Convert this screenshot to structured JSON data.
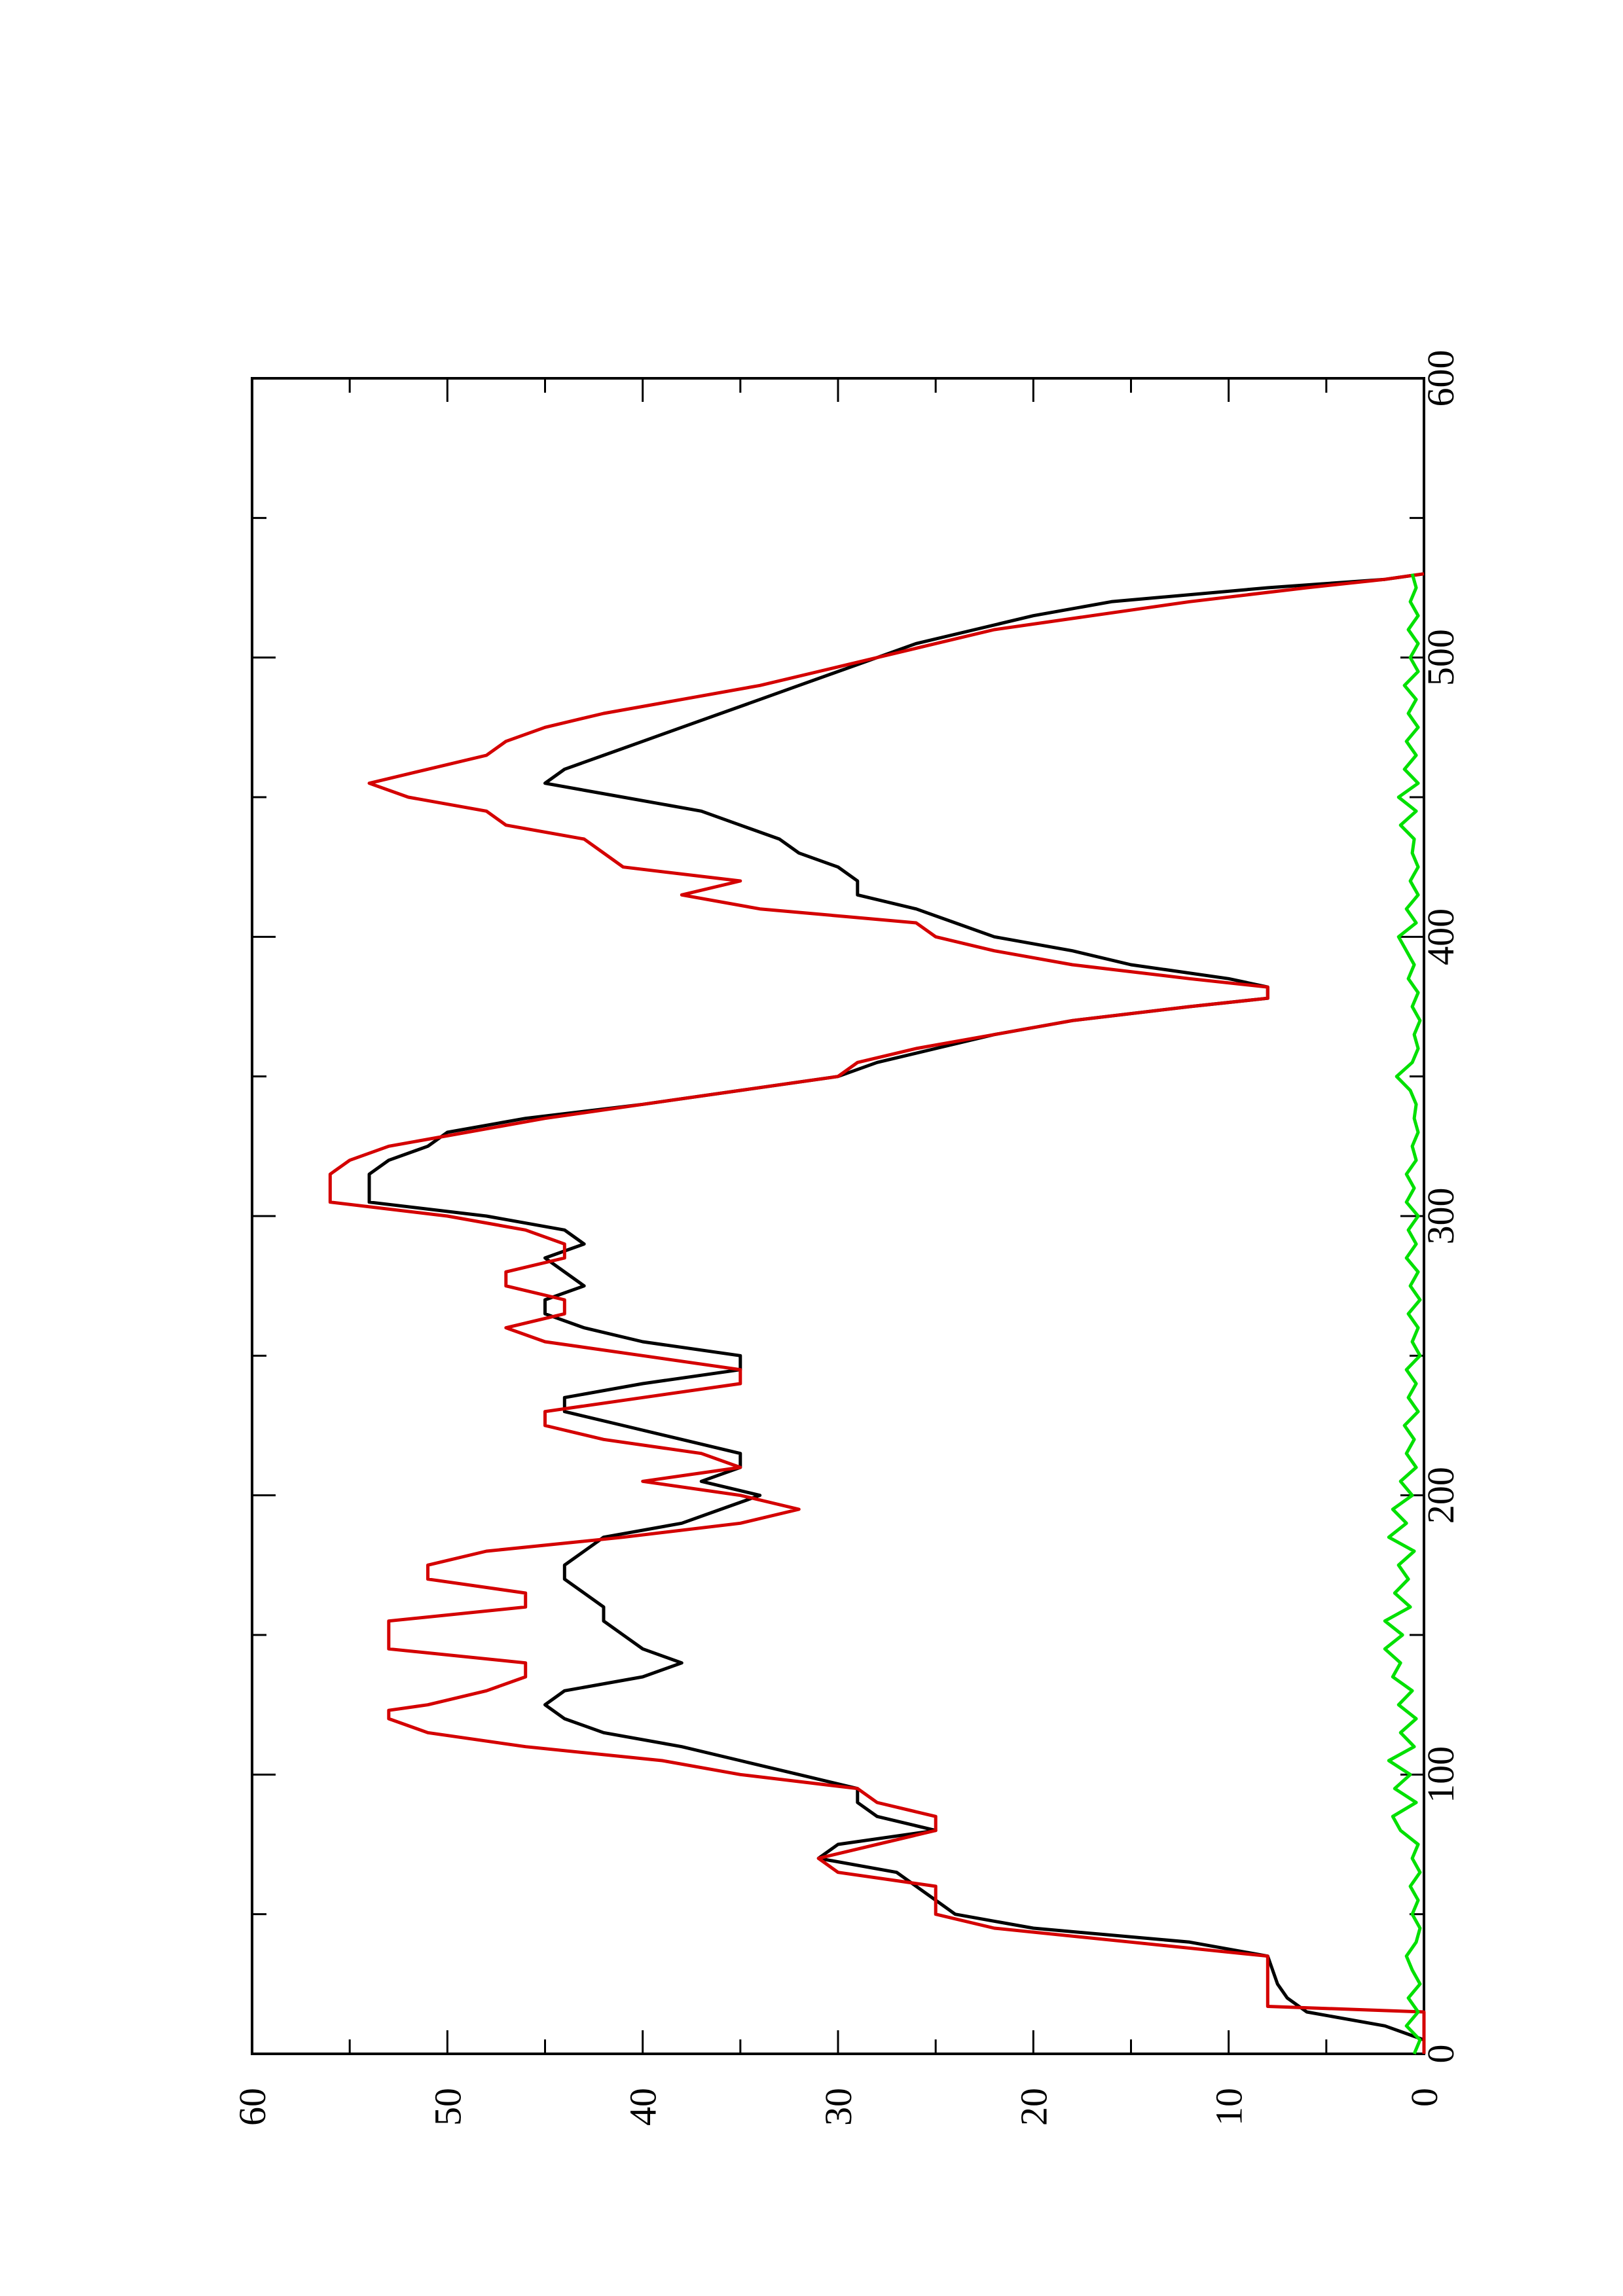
{
  "chart_data": {
    "type": "line",
    "orientation": "rotated-90-ccw",
    "title": "",
    "xlabel": "",
    "ylabel": "",
    "xlim": [
      0,
      600
    ],
    "ylim": [
      0,
      60
    ],
    "x_ticks": [
      "0",
      "100",
      "200",
      "300",
      "400",
      "500",
      "600"
    ],
    "y_ticks": [
      "0",
      "10",
      "20",
      "30",
      "40",
      "50",
      "60"
    ],
    "grid": false,
    "legend": "none",
    "series": [
      {
        "color": "#000000",
        "points": [
          [
            0,
            0
          ],
          [
            5,
            0
          ],
          [
            10,
            2
          ],
          [
            15,
            6
          ],
          [
            20,
            7
          ],
          [
            25,
            7.5
          ],
          [
            35,
            8
          ],
          [
            40,
            12
          ],
          [
            45,
            20
          ],
          [
            50,
            24
          ],
          [
            55,
            25
          ],
          [
            60,
            26
          ],
          [
            65,
            27
          ],
          [
            70,
            31
          ],
          [
            75,
            30
          ],
          [
            80,
            25
          ],
          [
            85,
            28
          ],
          [
            90,
            29
          ],
          [
            95,
            29
          ],
          [
            100,
            32
          ],
          [
            105,
            35
          ],
          [
            110,
            38
          ],
          [
            115,
            42
          ],
          [
            120,
            44
          ],
          [
            125,
            45
          ],
          [
            130,
            44
          ],
          [
            135,
            40
          ],
          [
            140,
            38
          ],
          [
            145,
            40
          ],
          [
            150,
            41
          ],
          [
            155,
            42
          ],
          [
            160,
            42
          ],
          [
            165,
            43
          ],
          [
            170,
            44
          ],
          [
            175,
            44
          ],
          [
            180,
            43
          ],
          [
            185,
            42
          ],
          [
            190,
            38
          ],
          [
            195,
            36
          ],
          [
            200,
            34
          ],
          [
            205,
            37
          ],
          [
            210,
            35
          ],
          [
            215,
            35
          ],
          [
            220,
            38
          ],
          [
            225,
            41
          ],
          [
            230,
            44
          ],
          [
            235,
            44
          ],
          [
            240,
            40
          ],
          [
            245,
            35
          ],
          [
            250,
            35
          ],
          [
            255,
            40
          ],
          [
            260,
            43
          ],
          [
            265,
            45
          ],
          [
            270,
            45
          ],
          [
            275,
            43
          ],
          [
            280,
            44
          ],
          [
            285,
            45
          ],
          [
            290,
            43
          ],
          [
            295,
            44
          ],
          [
            300,
            48
          ],
          [
            305,
            54
          ],
          [
            310,
            54
          ],
          [
            315,
            54
          ],
          [
            320,
            53
          ],
          [
            325,
            51
          ],
          [
            330,
            50
          ],
          [
            335,
            46
          ],
          [
            340,
            40
          ],
          [
            345,
            35
          ],
          [
            350,
            30
          ],
          [
            355,
            28
          ],
          [
            360,
            25
          ],
          [
            365,
            22
          ],
          [
            370,
            18
          ],
          [
            375,
            12
          ],
          [
            378,
            8
          ],
          [
            382,
            8
          ],
          [
            385,
            10
          ],
          [
            390,
            15
          ],
          [
            395,
            18
          ],
          [
            400,
            22
          ],
          [
            405,
            24
          ],
          [
            410,
            26
          ],
          [
            415,
            29
          ],
          [
            420,
            29
          ],
          [
            425,
            30
          ],
          [
            430,
            32
          ],
          [
            435,
            33
          ],
          [
            440,
            35
          ],
          [
            445,
            37
          ],
          [
            450,
            41
          ],
          [
            455,
            45
          ],
          [
            460,
            44
          ],
          [
            465,
            42
          ],
          [
            470,
            40
          ],
          [
            475,
            38
          ],
          [
            480,
            36
          ],
          [
            485,
            34
          ],
          [
            490,
            32
          ],
          [
            495,
            30
          ],
          [
            500,
            28
          ],
          [
            505,
            26
          ],
          [
            510,
            23
          ],
          [
            515,
            20
          ],
          [
            520,
            16
          ],
          [
            525,
            8
          ],
          [
            528,
            2
          ],
          [
            530,
            0
          ]
        ]
      },
      {
        "color": "#d40000",
        "points": [
          [
            0,
            0
          ],
          [
            15,
            0
          ],
          [
            17,
            8
          ],
          [
            35,
            8
          ],
          [
            40,
            15
          ],
          [
            45,
            22
          ],
          [
            50,
            25
          ],
          [
            60,
            25
          ],
          [
            65,
            30
          ],
          [
            70,
            31
          ],
          [
            80,
            25
          ],
          [
            85,
            25
          ],
          [
            90,
            28
          ],
          [
            95,
            29
          ],
          [
            100,
            35
          ],
          [
            105,
            39
          ],
          [
            110,
            46
          ],
          [
            115,
            51
          ],
          [
            120,
            53
          ],
          [
            123,
            53
          ],
          [
            125,
            51
          ],
          [
            130,
            48
          ],
          [
            135,
            46
          ],
          [
            140,
            46
          ],
          [
            145,
            53
          ],
          [
            155,
            53
          ],
          [
            160,
            46
          ],
          [
            165,
            46
          ],
          [
            170,
            51
          ],
          [
            175,
            51
          ],
          [
            180,
            48
          ],
          [
            185,
            41
          ],
          [
            190,
            35
          ],
          [
            195,
            32
          ],
          [
            200,
            35
          ],
          [
            205,
            40
          ],
          [
            210,
            35
          ],
          [
            215,
            37
          ],
          [
            220,
            42
          ],
          [
            225,
            45
          ],
          [
            230,
            45
          ],
          [
            235,
            40
          ],
          [
            240,
            35
          ],
          [
            245,
            35
          ],
          [
            250,
            40
          ],
          [
            255,
            45
          ],
          [
            260,
            47
          ],
          [
            265,
            44
          ],
          [
            270,
            44
          ],
          [
            275,
            47
          ],
          [
            280,
            47
          ],
          [
            285,
            44
          ],
          [
            290,
            44
          ],
          [
            295,
            46
          ],
          [
            300,
            50
          ],
          [
            305,
            56
          ],
          [
            315,
            56
          ],
          [
            320,
            55
          ],
          [
            325,
            53
          ],
          [
            330,
            49
          ],
          [
            335,
            45
          ],
          [
            340,
            40
          ],
          [
            345,
            35
          ],
          [
            350,
            30
          ],
          [
            355,
            29
          ],
          [
            360,
            26
          ],
          [
            365,
            22
          ],
          [
            370,
            18
          ],
          [
            375,
            12
          ],
          [
            378,
            8
          ],
          [
            382,
            8
          ],
          [
            385,
            12
          ],
          [
            390,
            18
          ],
          [
            395,
            22
          ],
          [
            400,
            25
          ],
          [
            405,
            26
          ],
          [
            410,
            34
          ],
          [
            415,
            38
          ],
          [
            420,
            35
          ],
          [
            425,
            41
          ],
          [
            430,
            42
          ],
          [
            435,
            43
          ],
          [
            440,
            47
          ],
          [
            445,
            48
          ],
          [
            450,
            52
          ],
          [
            455,
            54
          ],
          [
            460,
            51
          ],
          [
            465,
            48
          ],
          [
            470,
            47
          ],
          [
            475,
            45
          ],
          [
            480,
            42
          ],
          [
            485,
            38
          ],
          [
            490,
            34
          ],
          [
            495,
            31
          ],
          [
            500,
            28
          ],
          [
            505,
            25
          ],
          [
            510,
            22
          ],
          [
            515,
            17
          ],
          [
            520,
            12
          ],
          [
            525,
            6
          ],
          [
            528,
            2
          ],
          [
            530,
            0
          ]
        ]
      },
      {
        "color": "#00e000",
        "points": [
          [
            0,
            0.5
          ],
          [
            5,
            0.2
          ],
          [
            10,
            0.9
          ],
          [
            15,
            0.3
          ],
          [
            20,
            0.8
          ],
          [
            25,
            0.2
          ],
          [
            30,
            0.6
          ],
          [
            35,
            0.9
          ],
          [
            40,
            0.4
          ],
          [
            45,
            0.2
          ],
          [
            50,
            0.6
          ],
          [
            55,
            0.3
          ],
          [
            60,
            0.7
          ],
          [
            65,
            0.2
          ],
          [
            70,
            0.6
          ],
          [
            75,
            0.3
          ],
          [
            80,
            1.2
          ],
          [
            85,
            1.6
          ],
          [
            90,
            0.4
          ],
          [
            95,
            1.5
          ],
          [
            100,
            0.7
          ],
          [
            105,
            1.8
          ],
          [
            110,
            0.5
          ],
          [
            115,
            1.2
          ],
          [
            120,
            0.4
          ],
          [
            125,
            1.3
          ],
          [
            130,
            0.6
          ],
          [
            135,
            1.6
          ],
          [
            140,
            1.2
          ],
          [
            145,
            2.0
          ],
          [
            150,
            1.1
          ],
          [
            155,
            2.0
          ],
          [
            160,
            0.7
          ],
          [
            165,
            1.5
          ],
          [
            170,
            0.8
          ],
          [
            175,
            1.3
          ],
          [
            180,
            0.5
          ],
          [
            185,
            1.8
          ],
          [
            190,
            0.9
          ],
          [
            195,
            1.6
          ],
          [
            200,
            0.6
          ],
          [
            205,
            1.2
          ],
          [
            210,
            0.4
          ],
          [
            215,
            0.9
          ],
          [
            220,
            0.5
          ],
          [
            225,
            1.0
          ],
          [
            230,
            0.3
          ],
          [
            235,
            0.8
          ],
          [
            240,
            0.4
          ],
          [
            245,
            0.9
          ],
          [
            250,
            0.2
          ],
          [
            255,
            0.6
          ],
          [
            260,
            0.3
          ],
          [
            265,
            0.8
          ],
          [
            270,
            0.2
          ],
          [
            275,
            0.7
          ],
          [
            280,
            0.3
          ],
          [
            285,
            0.9
          ],
          [
            290,
            0.4
          ],
          [
            295,
            0.8
          ],
          [
            300,
            0.3
          ],
          [
            305,
            0.9
          ],
          [
            310,
            0.5
          ],
          [
            315,
            0.9
          ],
          [
            320,
            0.4
          ],
          [
            325,
            0.6
          ],
          [
            330,
            0.3
          ],
          [
            335,
            0.5
          ],
          [
            340,
            0.4
          ],
          [
            345,
            0.7
          ],
          [
            350,
            1.4
          ],
          [
            355,
            0.6
          ],
          [
            360,
            0.3
          ],
          [
            365,
            0.5
          ],
          [
            370,
            0.2
          ],
          [
            375,
            0.6
          ],
          [
            380,
            0.3
          ],
          [
            385,
            0.8
          ],
          [
            390,
            0.5
          ],
          [
            395,
            0.9
          ],
          [
            400,
            1.3
          ],
          [
            405,
            0.4
          ],
          [
            410,
            0.9
          ],
          [
            415,
            0.3
          ],
          [
            420,
            0.7
          ],
          [
            425,
            0.3
          ],
          [
            430,
            0.6
          ],
          [
            435,
            0.5
          ],
          [
            440,
            1.2
          ],
          [
            445,
            0.4
          ],
          [
            450,
            1.3
          ],
          [
            455,
            0.3
          ],
          [
            460,
            1.0
          ],
          [
            465,
            0.4
          ],
          [
            470,
            0.9
          ],
          [
            475,
            0.3
          ],
          [
            480,
            0.8
          ],
          [
            485,
            0.4
          ],
          [
            490,
            1.0
          ],
          [
            495,
            0.3
          ],
          [
            500,
            0.7
          ],
          [
            505,
            0.3
          ],
          [
            510,
            0.8
          ],
          [
            515,
            0.3
          ],
          [
            520,
            0.7
          ],
          [
            525,
            0.4
          ],
          [
            530,
            0.6
          ]
        ]
      }
    ]
  }
}
